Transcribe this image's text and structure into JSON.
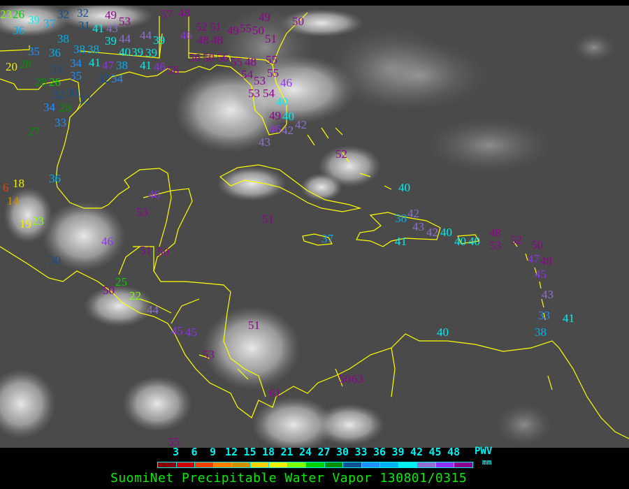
{
  "map": {
    "coastline_color": "#ffff00",
    "station_values": [
      23,
      26,
      39,
      37,
      36,
      32,
      32,
      31,
      35,
      36,
      38,
      38,
      38,
      34,
      35,
      41,
      47,
      38,
      41,
      43,
      39,
      40,
      39,
      20,
      28,
      28,
      26,
      31,
      32,
      30,
      32,
      34,
      28,
      33,
      27,
      32,
      34,
      49,
      53,
      44,
      44,
      39,
      39,
      41,
      57,
      48,
      52,
      51,
      49,
      55,
      50,
      49,
      50,
      51,
      46,
      48,
      48,
      56,
      50,
      56,
      55,
      48,
      54,
      55,
      55,
      53,
      53,
      54,
      46,
      49,
      46,
      40,
      40,
      42,
      42,
      46,
      56,
      52,
      40,
      51,
      37,
      38,
      42,
      43,
      41,
      42,
      40,
      40,
      40,
      48,
      53,
      52,
      50,
      47,
      49,
      45,
      43,
      33,
      41,
      38,
      40,
      46,
      53,
      46,
      51,
      50,
      30,
      25,
      22,
      50,
      44,
      45,
      45,
      53,
      51,
      61,
      55,
      50,
      63,
      6,
      18,
      14,
      19,
      23,
      36,
      43
    ]
  },
  "legend": {
    "ticks": [
      "3",
      "6",
      "9",
      "12",
      "15",
      "18",
      "21",
      "24",
      "27",
      "30",
      "33",
      "36",
      "39",
      "42",
      "45",
      "48"
    ],
    "colors": [
      "#8b0000",
      "#d00000",
      "#f04000",
      "#ff8000",
      "#d09000",
      "#ffd000",
      "#f0f000",
      "#80ff00",
      "#00d000",
      "#009000",
      "#104f90",
      "#2090ff",
      "#00b0f0",
      "#00f0f0",
      "#9070d0",
      "#9030f0",
      "#900090"
    ],
    "unit_label": "PWV",
    "unit": "mm",
    "title": "SuomiNet Precipitable Water Vapor 130801/0315"
  }
}
